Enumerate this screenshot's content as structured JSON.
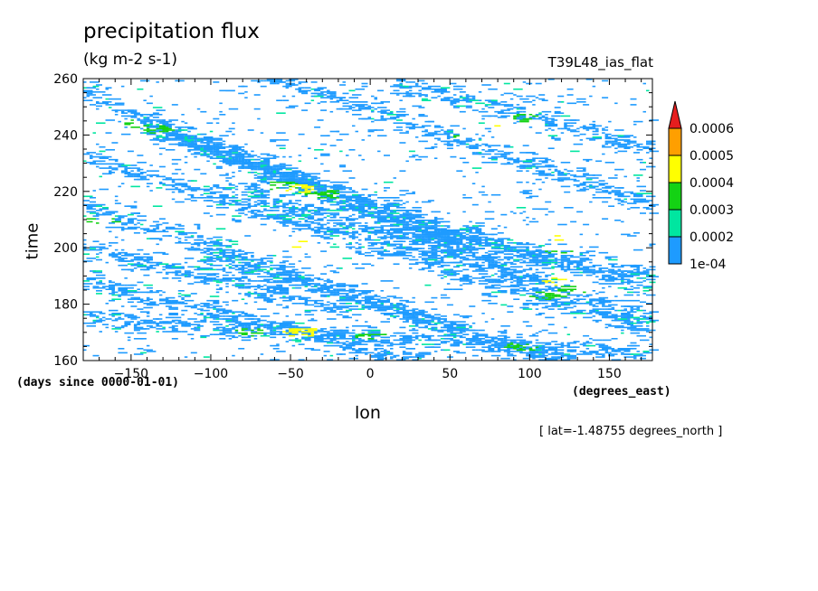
{
  "chart_data": {
    "type": "heatmap",
    "title": "precipitation flux",
    "units": "(kg m-2 s-1)",
    "experiment": "T39L48_ias_flat",
    "xlabel": "lon",
    "xunits": "(degrees_east)",
    "ylabel": "time",
    "yunits": "(days since 0000-01-01)",
    "annotation": "[ lat=-1.48755 degrees_north ]",
    "xlim": [
      -180,
      177
    ],
    "ylim": [
      160,
      260
    ],
    "xticks": [
      -150,
      -100,
      -50,
      0,
      50,
      100,
      150
    ],
    "xtick_labels": [
      "−150",
      "−100",
      "−50",
      "0",
      "50",
      "100",
      "150"
    ],
    "yticks": [
      160,
      180,
      200,
      220,
      240,
      260
    ],
    "ytick_labels": [
      "160",
      "180",
      "200",
      "220",
      "240",
      "260"
    ],
    "colorbar": {
      "levels": [
        0.0001,
        0.0002,
        0.0003,
        0.0004,
        0.0005,
        0.0006
      ],
      "labels": [
        "1e-04",
        "0.0002",
        "0.0003",
        "0.0004",
        "0.0005",
        "0.0006"
      ],
      "colors": [
        "#1e9bff",
        "#00e6a0",
        "#14d214",
        "#ffff00",
        "#ff9f00",
        "#e61e1e"
      ],
      "extend": "max"
    },
    "bands": [
      {
        "lon0": -180,
        "t0": 255,
        "lon1": 60,
        "t1": 200
      },
      {
        "lon0": -150,
        "t0": 245,
        "lon1": 100,
        "t1": 190
      },
      {
        "lon0": -120,
        "t0": 238,
        "lon1": 170,
        "t1": 185
      },
      {
        "lon0": -180,
        "t0": 232,
        "lon1": 177,
        "t1": 170
      },
      {
        "lon0": -90,
        "t0": 222,
        "lon1": 177,
        "t1": 175
      },
      {
        "lon0": -180,
        "t0": 215,
        "lon1": 50,
        "t1": 172
      },
      {
        "lon0": -180,
        "t0": 200,
        "lon1": -20,
        "t1": 178
      },
      {
        "lon0": -100,
        "t0": 196,
        "lon1": 120,
        "t1": 160
      },
      {
        "lon0": -180,
        "t0": 188,
        "lon1": 30,
        "t1": 160
      },
      {
        "lon0": -60,
        "t0": 260,
        "lon1": 177,
        "t1": 215
      },
      {
        "lon0": 20,
        "t0": 258,
        "lon1": 177,
        "t1": 235
      },
      {
        "lon0": 40,
        "t0": 205,
        "lon1": 177,
        "t1": 190
      },
      {
        "lon0": -180,
        "t0": 175,
        "lon1": 177,
        "t1": 162
      }
    ],
    "hotspots": [
      {
        "lon": -55,
        "t": 222,
        "level": 0.0003
      },
      {
        "lon": -45,
        "t": 221,
        "level": 0.0004
      },
      {
        "lon": -30,
        "t": 219,
        "level": 0.0003
      },
      {
        "lon": 80,
        "t": 244,
        "level": 0.0004
      },
      {
        "lon": 95,
        "t": 246,
        "level": 0.0003
      },
      {
        "lon": 110,
        "t": 203,
        "level": 0.0004
      },
      {
        "lon": 120,
        "t": 199,
        "level": 0.0003
      },
      {
        "lon": 118,
        "t": 188,
        "level": 0.0004
      },
      {
        "lon": 125,
        "t": 185,
        "level": 0.0003
      },
      {
        "lon": 110,
        "t": 183,
        "level": 0.0003
      },
      {
        "lon": -50,
        "t": 201,
        "level": 0.0004
      },
      {
        "lon": -75,
        "t": 170,
        "level": 0.0003
      },
      {
        "lon": -45,
        "t": 170,
        "level": 0.0004
      },
      {
        "lon": 95,
        "t": 165,
        "level": 0.0003
      },
      {
        "lon": 0,
        "t": 169,
        "level": 0.0003
      },
      {
        "lon": -155,
        "t": 244,
        "level": 0.0003
      },
      {
        "lon": -135,
        "t": 242,
        "level": 0.0003
      },
      {
        "lon": -170,
        "t": 210,
        "level": 0.0003
      },
      {
        "lon": 60,
        "t": 240,
        "level": 0.0003
      }
    ]
  }
}
